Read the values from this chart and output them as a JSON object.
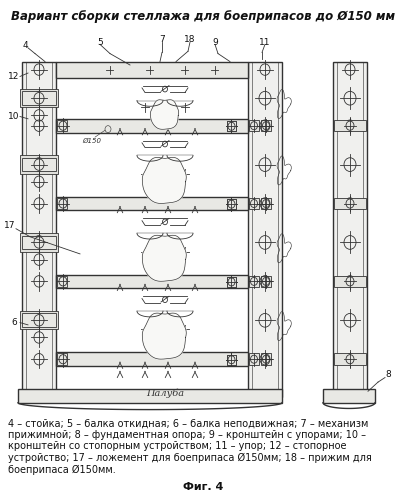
{
  "title": "Вариант сборки стеллажа для боеприпасов до Ø150 мм",
  "caption_text": "4 – стойка; 5 – балка откидная; 6 – балка неподвижная; 7 – механизм прижимной; 8 – фундаментная опора; 9 – кронштейн с упорами; 10 – кронштейн со стопорным устройством; 11 – упор; 12 – стопорное устройство; 17 – ложемент для боеприпаса Ø150мм; 18 – прижим для боеприпаса Ø150мм.",
  "fig_label": "Фиг. 4",
  "bg_color": "#ffffff",
  "lc": "#333333",
  "lc_light": "#aaaaaa",
  "figsize": [
    4.06,
    4.99
  ],
  "dpi": 100,
  "title_fontsize": 8.5,
  "caption_fontsize": 7.0,
  "fig_label_fontsize": 8.0
}
